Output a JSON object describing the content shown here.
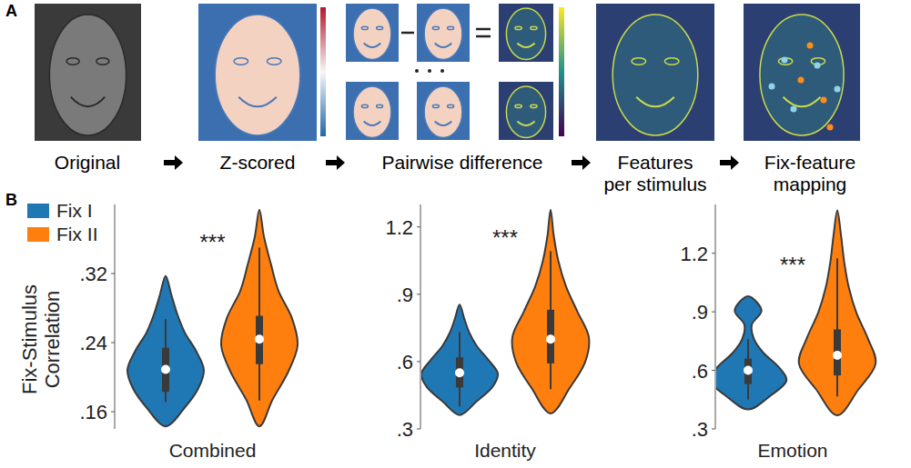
{
  "pipeline": {
    "panel_labels": [
      "A",
      "B"
    ],
    "steps": [
      "Original",
      "Z-scored",
      "Pairwise difference",
      "Features per stimulus",
      "Fix-feature mapping"
    ]
  },
  "chart_data": [
    {
      "type": "violin",
      "y_label": "Fix-Stimulus Correlation",
      "legend": "upper left",
      "annotation": "***",
      "categories": [
        "Combined"
      ],
      "grid": false,
      "ylim": [
        0.14,
        0.4
      ],
      "yticks": [
        {
          "value": 0.16,
          "label": ".16"
        },
        {
          "value": 0.24,
          "label": ".24"
        },
        {
          "value": 0.32,
          "label": ".32"
        }
      ],
      "series": [
        {
          "name": "Fix I",
          "color": "#1f77b4",
          "min": 0.143,
          "max": 0.317,
          "whisker_low": 0.171,
          "q1": 0.183,
          "median": 0.209,
          "q3": 0.234,
          "whisker_high": 0.267,
          "density": [
            0,
            0.5,
            0.85,
            1.0,
            0.8,
            0.5,
            0.3,
            0.15,
            0
          ]
        },
        {
          "name": "Fix II",
          "color": "#ff7f0e",
          "min": 0.143,
          "max": 0.394,
          "whisker_low": 0.173,
          "q1": 0.215,
          "median": 0.244,
          "q3": 0.271,
          "whisker_high": 0.35,
          "density": [
            0,
            0.35,
            0.75,
            1.0,
            0.85,
            0.5,
            0.3,
            0.12,
            0
          ]
        }
      ]
    },
    {
      "type": "violin",
      "annotation": "***",
      "categories": [
        "Identity"
      ],
      "grid": false,
      "ylim": [
        0.3,
        1.3
      ],
      "yticks": [
        {
          "value": 0.3,
          "label": ".3"
        },
        {
          "value": 0.6,
          "label": ".6"
        },
        {
          "value": 0.9,
          "label": ".9"
        },
        1.2
      ],
      "series": [
        {
          "color": "#1f77b4",
          "min": 0.362,
          "max": 0.854,
          "whisker_low": 0.4,
          "q1": 0.485,
          "median": 0.55,
          "q3": 0.619,
          "whisker_high": 0.731,
          "density": [
            0,
            0.45,
            0.85,
            1.0,
            0.75,
            0.45,
            0.25,
            0.12,
            0
          ]
        },
        {
          "color": "#ff7f0e",
          "min": 0.369,
          "max": 1.277,
          "whisker_low": 0.477,
          "q1": 0.592,
          "median": 0.7,
          "q3": 0.831,
          "whisker_high": 1.092,
          "density": [
            0,
            0.5,
            0.9,
            1.0,
            0.7,
            0.4,
            0.2,
            0.08,
            0
          ]
        }
      ]
    },
    {
      "type": "violin",
      "annotation": "***",
      "categories": [
        "Emotion"
      ],
      "grid": false,
      "ylim": [
        0.3,
        1.45
      ],
      "yticks": [
        {
          "value": 0.3,
          "label": ".3"
        },
        {
          "value": 0.6,
          "label": ".6"
        },
        {
          "value": 0.9,
          "label": ".9"
        },
        1.2
      ],
      "series": [
        {
          "color": "#1f77b4",
          "min": 0.4,
          "max": 0.98,
          "whisker_low": 0.45,
          "q1": 0.53,
          "median": 0.6,
          "q3": 0.66,
          "whisker_high": 0.76,
          "density": [
            0,
            0.6,
            1.0,
            0.8,
            0.4,
            0.15,
            0.1,
            0.35,
            0
          ]
        },
        {
          "color": "#ff7f0e",
          "min": 0.37,
          "max": 1.42,
          "whisker_low": 0.467,
          "q1": 0.574,
          "median": 0.677,
          "q3": 0.81,
          "whisker_high": 1.174,
          "density": [
            0,
            0.55,
            1.0,
            0.8,
            0.5,
            0.3,
            0.18,
            0.1,
            0
          ]
        }
      ]
    }
  ]
}
